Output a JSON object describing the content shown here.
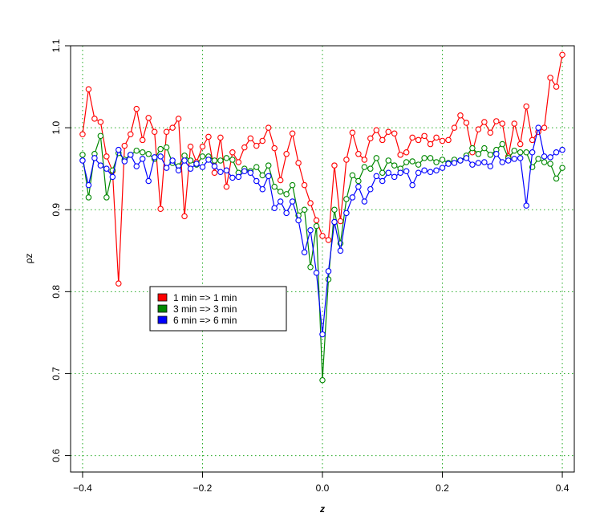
{
  "chart_data": {
    "type": "line",
    "title": "",
    "xlabel": "z",
    "ylabel": "ρz",
    "xlim": [
      -0.42,
      0.42
    ],
    "ylim": [
      0.58,
      1.1
    ],
    "xticks": [
      -0.4,
      -0.2,
      0.0,
      0.2,
      0.4
    ],
    "xtick_labels": [
      "−0.4",
      "−0.2",
      "0.0",
      "0.2",
      "0.4"
    ],
    "yticks": [
      0.6,
      0.7,
      0.8,
      0.9,
      1.0,
      1.1
    ],
    "ytick_labels": [
      "0.6",
      "0.7",
      "0.8",
      "0.9",
      "1.0",
      "1.1"
    ],
    "grid": true,
    "grid_color": "#22aa22",
    "legend_position": "center-left",
    "markers": "open-circle",
    "x": [
      -0.4,
      -0.39,
      -0.38,
      -0.37,
      -0.36,
      -0.35,
      -0.34,
      -0.33,
      -0.32,
      -0.31,
      -0.3,
      -0.29,
      -0.28,
      -0.27,
      -0.26,
      -0.25,
      -0.24,
      -0.23,
      -0.22,
      -0.21,
      -0.2,
      -0.19,
      -0.18,
      -0.17,
      -0.16,
      -0.15,
      -0.14,
      -0.13,
      -0.12,
      -0.11,
      -0.1,
      -0.09,
      -0.08,
      -0.07,
      -0.06,
      -0.05,
      -0.04,
      -0.03,
      -0.02,
      -0.01,
      0.0,
      0.01,
      0.02,
      0.03,
      0.04,
      0.05,
      0.06,
      0.07,
      0.08,
      0.09,
      0.1,
      0.11,
      0.12,
      0.13,
      0.14,
      0.15,
      0.16,
      0.17,
      0.18,
      0.19,
      0.2,
      0.21,
      0.22,
      0.23,
      0.24,
      0.25,
      0.26,
      0.27,
      0.28,
      0.29,
      0.3,
      0.31,
      0.32,
      0.33,
      0.34,
      0.35,
      0.36,
      0.37,
      0.38,
      0.39,
      0.4
    ],
    "series": [
      {
        "name": "1 min => 1 min",
        "color": "#ff0000",
        "values": [
          0.992,
          1.047,
          1.011,
          1.007,
          0.965,
          0.947,
          0.81,
          0.978,
          0.992,
          1.023,
          0.985,
          1.012,
          0.995,
          0.901,
          0.995,
          1.0,
          1.011,
          0.892,
          0.977,
          0.958,
          0.977,
          0.989,
          0.945,
          0.988,
          0.928,
          0.97,
          0.958,
          0.976,
          0.987,
          0.978,
          0.984,
          1.0,
          0.975,
          0.936,
          0.968,
          0.993,
          0.957,
          0.93,
          0.908,
          0.887,
          0.868,
          0.863,
          0.954,
          0.886,
          0.961,
          0.994,
          0.968,
          0.961,
          0.987,
          0.997,
          0.985,
          0.995,
          0.993,
          0.967,
          0.97,
          0.988,
          0.985,
          0.99,
          0.98,
          0.988,
          0.984,
          0.985,
          1.0,
          1.015,
          1.006,
          0.97,
          0.998,
          1.007,
          0.994,
          1.008,
          1.005,
          0.965,
          1.005,
          0.98,
          1.026,
          0.985,
          0.995,
          1.0,
          1.061,
          1.05,
          1.089
        ]
      },
      {
        "name": "3 min => 3 min",
        "color": "#008800",
        "values": [
          0.967,
          0.915,
          0.968,
          0.99,
          0.915,
          0.948,
          0.969,
          0.961,
          0.967,
          0.972,
          0.97,
          0.968,
          0.962,
          0.974,
          0.976,
          0.957,
          0.953,
          0.966,
          0.96,
          0.955,
          0.965,
          0.965,
          0.96,
          0.96,
          0.963,
          0.961,
          0.945,
          0.95,
          0.947,
          0.952,
          0.942,
          0.954,
          0.928,
          0.922,
          0.919,
          0.93,
          0.893,
          0.9,
          0.83,
          0.88,
          0.692,
          0.815,
          0.9,
          0.859,
          0.913,
          0.942,
          0.935,
          0.952,
          0.95,
          0.963,
          0.945,
          0.96,
          0.954,
          0.95,
          0.958,
          0.959,
          0.955,
          0.963,
          0.963,
          0.958,
          0.961,
          0.957,
          0.961,
          0.96,
          0.966,
          0.975,
          0.968,
          0.975,
          0.967,
          0.973,
          0.98,
          0.963,
          0.972,
          0.97,
          0.97,
          0.952,
          0.962,
          0.958,
          0.956,
          0.938,
          0.951
        ]
      },
      {
        "name": "6 min => 6 min",
        "color": "#0000ff",
        "values": [
          0.96,
          0.93,
          0.963,
          0.954,
          0.95,
          0.94,
          0.973,
          0.959,
          0.967,
          0.953,
          0.962,
          0.935,
          0.964,
          0.965,
          0.951,
          0.96,
          0.948,
          0.96,
          0.95,
          0.956,
          0.952,
          0.961,
          0.953,
          0.946,
          0.948,
          0.939,
          0.94,
          0.947,
          0.945,
          0.935,
          0.925,
          0.941,
          0.902,
          0.91,
          0.896,
          0.91,
          0.887,
          0.848,
          0.875,
          0.823,
          0.748,
          0.825,
          0.885,
          0.85,
          0.896,
          0.915,
          0.928,
          0.91,
          0.925,
          0.941,
          0.935,
          0.945,
          0.94,
          0.945,
          0.947,
          0.93,
          0.945,
          0.948,
          0.946,
          0.948,
          0.951,
          0.956,
          0.957,
          0.96,
          0.963,
          0.955,
          0.957,
          0.958,
          0.953,
          0.968,
          0.958,
          0.96,
          0.962,
          0.963,
          0.905,
          0.97,
          1.0,
          0.965,
          0.964,
          0.97,
          0.973
        ]
      }
    ]
  }
}
